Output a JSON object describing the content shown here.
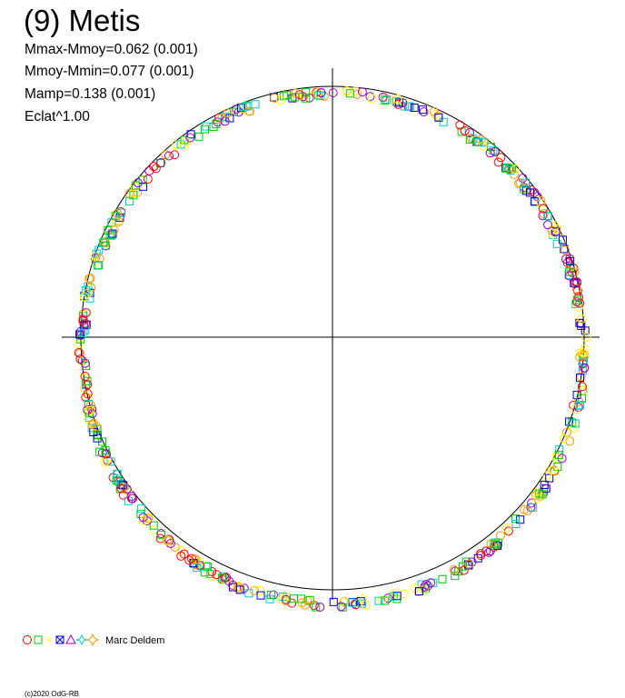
{
  "header": {
    "title": "(9) Metis",
    "stats": [
      "Mmax-Mmoy=0.062 (0.001)",
      "Mmoy-Mmin=0.077 (0.001)",
      "Mamp=0.138 (0.001)",
      "Eclat^1.00"
    ]
  },
  "legend": {
    "author": "Marc Deldem"
  },
  "footer": {
    "copyright": "(c)2020 OdG-RB"
  }
}
